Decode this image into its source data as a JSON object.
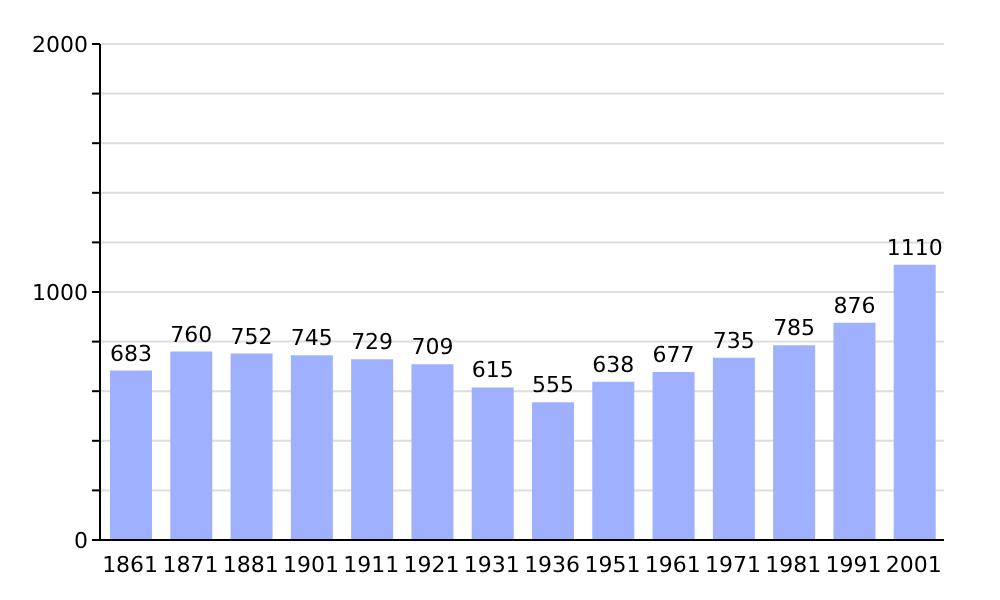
{
  "chart_data": {
    "type": "bar",
    "categories": [
      "1861",
      "1871",
      "1881",
      "1901",
      "1911",
      "1921",
      "1931",
      "1936",
      "1951",
      "1961",
      "1971",
      "1981",
      "1991",
      "2001"
    ],
    "values": [
      683,
      760,
      752,
      745,
      729,
      709,
      615,
      555,
      638,
      677,
      735,
      785,
      876,
      1110
    ],
    "color": "#9fb0ff",
    "ylim": [
      0,
      2000
    ],
    "yticks": [
      0,
      {
        "value": 200,
        "label": null
      },
      {
        "value": 400,
        "label": null
      },
      {
        "value": 600,
        "label": null
      },
      {
        "value": 800,
        "label": null
      },
      1000,
      {
        "value": 1200,
        "label": null
      },
      {
        "value": 1400,
        "label": null
      },
      {
        "value": 1600,
        "label": null
      },
      {
        "value": 1800,
        "label": null
      },
      2000
    ],
    "grid": "y",
    "data_labels": true
  }
}
